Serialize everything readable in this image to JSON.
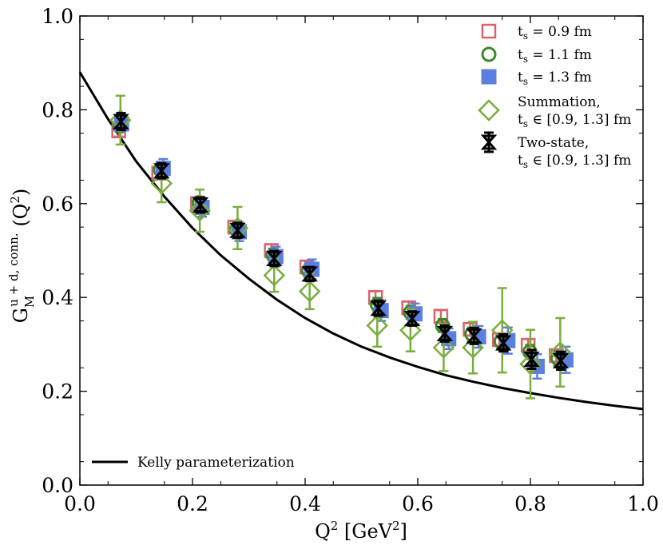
{
  "chart_data": {
    "type": "scatter",
    "xlabel": "Q² [GeV²]",
    "ylabel": "G_M^{u+d, conn.}(Q²)",
    "xlim": [
      0.0,
      1.0
    ],
    "ylim": [
      0.0,
      1.0
    ],
    "x_ticks": [
      "0.0",
      "0.2",
      "0.4",
      "0.6",
      "0.8",
      "1.0"
    ],
    "y_ticks": [
      "0.0",
      "0.2",
      "0.4",
      "0.6",
      "0.8",
      "1.0"
    ],
    "grid": false,
    "legend_position": "top-right",
    "colors": {
      "ts09": "#d9636e",
      "ts11": "#3a8a2a",
      "ts13": "#5b7fe0",
      "summation": "#7aad3c",
      "twostate": "#000000",
      "kelly": "#000000"
    },
    "series": [
      {
        "name": "t_s = 0.9 fm",
        "marker": "open-square",
        "x": [
          0.069,
          0.14,
          0.209,
          0.275,
          0.34,
          0.403,
          0.525,
          0.584,
          0.641,
          0.693,
          0.745,
          0.796,
          0.846
        ],
        "y": [
          0.755,
          0.665,
          0.6,
          0.55,
          0.5,
          0.465,
          0.4,
          0.378,
          0.36,
          0.332,
          0.31,
          0.298,
          0.276
        ],
        "err": [
          0.012,
          0.013,
          0.013,
          0.013,
          0.013,
          0.013,
          0.013,
          0.013,
          0.013,
          0.013,
          0.013,
          0.013,
          0.013
        ]
      },
      {
        "name": "t_s = 1.1 fm",
        "marker": "open-circle",
        "x": [
          0.071,
          0.143,
          0.212,
          0.278,
          0.343,
          0.406,
          0.528,
          0.587,
          0.644,
          0.696,
          0.748,
          0.799,
          0.849
        ],
        "y": [
          0.765,
          0.672,
          0.602,
          0.545,
          0.49,
          0.457,
          0.385,
          0.368,
          0.34,
          0.322,
          0.306,
          0.284,
          0.27
        ],
        "err": [
          0.012,
          0.013,
          0.013,
          0.013,
          0.014,
          0.014,
          0.014,
          0.014,
          0.014,
          0.014,
          0.015,
          0.015,
          0.015
        ]
      },
      {
        "name": "t_s = 1.3 fm",
        "marker": "filled-square",
        "x": [
          0.074,
          0.148,
          0.217,
          0.283,
          0.348,
          0.412,
          0.535,
          0.595,
          0.655,
          0.708,
          0.76,
          0.812,
          0.863
        ],
        "y": [
          0.77,
          0.675,
          0.592,
          0.54,
          0.487,
          0.46,
          0.372,
          0.365,
          0.312,
          0.316,
          0.308,
          0.253,
          0.267
        ],
        "err": [
          0.015,
          0.02,
          0.02,
          0.02,
          0.021,
          0.021,
          0.022,
          0.022,
          0.022,
          0.023,
          0.028,
          0.026,
          0.028
        ]
      },
      {
        "name": "Summation, t_s ∈ [0.9, 1.3] fm",
        "marker": "open-diamond",
        "x": [
          0.072,
          0.145,
          0.213,
          0.28,
          0.345,
          0.408,
          0.528,
          0.587,
          0.646,
          0.698,
          0.75,
          0.8,
          0.853
        ],
        "y": [
          0.778,
          0.643,
          0.585,
          0.548,
          0.447,
          0.413,
          0.34,
          0.33,
          0.293,
          0.293,
          0.33,
          0.258,
          0.283
        ],
        "err": [
          0.052,
          0.04,
          0.045,
          0.045,
          0.035,
          0.038,
          0.045,
          0.045,
          0.05,
          0.055,
          0.09,
          0.073,
          0.073
        ]
      },
      {
        "name": "Two-state, t_s ∈ [0.9, 1.3] fm",
        "marker": "hourglass",
        "x": [
          0.073,
          0.145,
          0.214,
          0.28,
          0.345,
          0.408,
          0.53,
          0.59,
          0.648,
          0.7,
          0.752,
          0.802,
          0.854
        ],
        "y": [
          0.775,
          0.67,
          0.597,
          0.543,
          0.483,
          0.45,
          0.377,
          0.355,
          0.323,
          0.318,
          0.303,
          0.268,
          0.265
        ],
        "err": [
          0.018,
          0.016,
          0.016,
          0.016,
          0.016,
          0.015,
          0.016,
          0.015,
          0.017,
          0.017,
          0.018,
          0.02,
          0.019
        ]
      }
    ],
    "curve": {
      "name": "Kelly parameterization",
      "x": [
        0.0,
        0.05,
        0.1,
        0.15,
        0.2,
        0.25,
        0.3,
        0.35,
        0.4,
        0.45,
        0.5,
        0.55,
        0.6,
        0.65,
        0.7,
        0.75,
        0.8,
        0.85,
        0.9,
        0.95,
        1.0
      ],
      "y": [
        0.88,
        0.78,
        0.69,
        0.615,
        0.548,
        0.49,
        0.44,
        0.395,
        0.356,
        0.323,
        0.295,
        0.272,
        0.252,
        0.234,
        0.22,
        0.207,
        0.196,
        0.186,
        0.177,
        0.169,
        0.162
      ]
    },
    "legend": {
      "entries": [
        {
          "series": 0,
          "lines": [
            "t_s = 0.9 fm"
          ]
        },
        {
          "series": 1,
          "lines": [
            "t_s = 1.1 fm"
          ]
        },
        {
          "series": 2,
          "lines": [
            "t_s = 1.3 fm"
          ]
        },
        {
          "series": 3,
          "lines": [
            "Summation,",
            "t_s ∈ [0.9, 1.3] fm"
          ]
        },
        {
          "series": 4,
          "lines": [
            "Two-state,",
            "t_s ∈ [0.9, 1.3] fm"
          ]
        }
      ],
      "curve_label": "Kelly parameterization"
    }
  }
}
